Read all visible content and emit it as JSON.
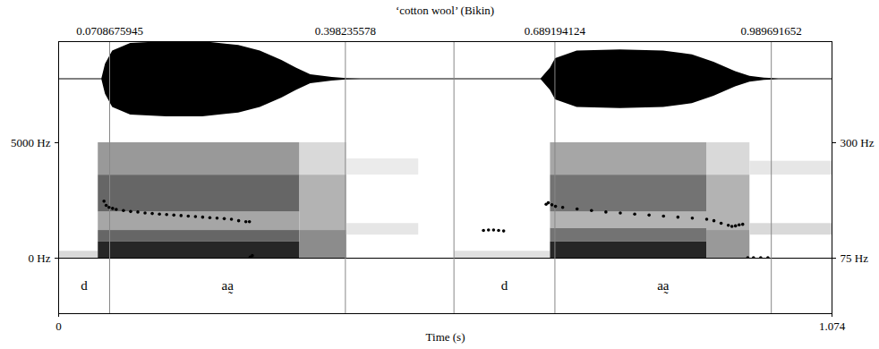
{
  "chart_data": {
    "type": "spectrogram",
    "title": "‘cotton wool’ (Bikin)",
    "xlabel": "Time (s)",
    "xlim": [
      0,
      1.074
    ],
    "xticks": [
      0,
      1.074
    ],
    "top_ticks": [
      0.0708675945,
      0.398235578,
      0.689194124,
      0.989691652
    ],
    "boundaries": [
      0.0708675945,
      0.398235578,
      0.549,
      0.689194124,
      0.989691652
    ],
    "intervals": [
      {
        "start": 0,
        "end": 0.0708675945,
        "label": "d"
      },
      {
        "start": 0.0708675945,
        "end": 0.398235578,
        "label": "aa̰"
      },
      {
        "start": 0.549,
        "end": 0.689194124,
        "label": "d"
      },
      {
        "start": 0.689194124,
        "end": 0.989691652,
        "label": "aa̰"
      }
    ],
    "ylim": [
      0,
      5000
    ],
    "yticks": [
      {
        "value": 0,
        "label": "0 Hz"
      },
      {
        "value": 5000,
        "label": "5000 Hz"
      }
    ],
    "y2lim": [
      75,
      300
    ],
    "y2ticks": [
      {
        "value": 75,
        "label": "75 Hz"
      },
      {
        "value": 300,
        "label": "300 Hz"
      }
    ],
    "waveform": {
      "lim": [
        -1,
        1
      ],
      "t": [
        0,
        0.06,
        0.065,
        0.075,
        0.1,
        0.15,
        0.2,
        0.25,
        0.28,
        0.31,
        0.33,
        0.35,
        0.38,
        0.4,
        0.42,
        0.55,
        0.67,
        0.683,
        0.69,
        0.72,
        0.78,
        0.84,
        0.88,
        0.91,
        0.94,
        0.96,
        0.98,
        1.0,
        1.074
      ],
      "amplitude": [
        0.01,
        0.01,
        0.4,
        0.75,
        0.95,
        1.0,
        1.0,
        0.9,
        0.75,
        0.5,
        0.3,
        0.12,
        0.05,
        0.02,
        0.01,
        0.01,
        0.01,
        0.3,
        0.55,
        0.75,
        0.78,
        0.75,
        0.65,
        0.45,
        0.2,
        0.08,
        0.03,
        0.01,
        0.01
      ]
    },
    "spectrogram": {
      "level_lim": [
        0,
        1
      ],
      "cells": [
        {
          "t0": 0.0,
          "t1": 0.055,
          "f0": 0,
          "f1": 300,
          "level": 0.15
        },
        {
          "t0": 0.055,
          "t1": 0.335,
          "f0": 0,
          "f1": 700,
          "level": 0.85
        },
        {
          "t0": 0.055,
          "t1": 0.335,
          "f0": 700,
          "f1": 1200,
          "level": 0.6
        },
        {
          "t0": 0.055,
          "t1": 0.335,
          "f0": 1200,
          "f1": 2000,
          "level": 0.35
        },
        {
          "t0": 0.055,
          "t1": 0.335,
          "f0": 2000,
          "f1": 3600,
          "level": 0.6
        },
        {
          "t0": 0.055,
          "t1": 0.335,
          "f0": 3600,
          "f1": 5000,
          "level": 0.4
        },
        {
          "t0": 0.335,
          "t1": 0.4,
          "f0": 0,
          "f1": 1200,
          "level": 0.45
        },
        {
          "t0": 0.335,
          "t1": 0.4,
          "f0": 1200,
          "f1": 3600,
          "level": 0.3
        },
        {
          "t0": 0.335,
          "t1": 0.4,
          "f0": 3600,
          "f1": 5000,
          "level": 0.15
        },
        {
          "t0": 0.4,
          "t1": 0.5,
          "f0": 1000,
          "f1": 1500,
          "level": 0.1
        },
        {
          "t0": 0.4,
          "t1": 0.5,
          "f0": 3600,
          "f1": 4300,
          "level": 0.08
        },
        {
          "t0": 0.55,
          "t1": 0.683,
          "f0": 0,
          "f1": 300,
          "level": 0.12
        },
        {
          "t0": 0.683,
          "t1": 0.9,
          "f0": 0,
          "f1": 700,
          "level": 0.85
        },
        {
          "t0": 0.683,
          "t1": 0.9,
          "f0": 700,
          "f1": 1300,
          "level": 0.55
        },
        {
          "t0": 0.683,
          "t1": 0.9,
          "f0": 1300,
          "f1": 2000,
          "level": 0.3
        },
        {
          "t0": 0.683,
          "t1": 0.9,
          "f0": 2000,
          "f1": 3600,
          "level": 0.55
        },
        {
          "t0": 0.683,
          "t1": 0.9,
          "f0": 3600,
          "f1": 5000,
          "level": 0.35
        },
        {
          "t0": 0.9,
          "t1": 0.96,
          "f0": 0,
          "f1": 1200,
          "level": 0.4
        },
        {
          "t0": 0.9,
          "t1": 0.96,
          "f0": 1200,
          "f1": 3600,
          "level": 0.3
        },
        {
          "t0": 0.9,
          "t1": 0.96,
          "f0": 3600,
          "f1": 5000,
          "level": 0.15
        },
        {
          "t0": 0.96,
          "t1": 1.074,
          "f0": 1000,
          "f1": 1500,
          "level": 0.15
        },
        {
          "t0": 0.96,
          "t1": 1.074,
          "f0": 3600,
          "f1": 4200,
          "level": 0.1
        }
      ]
    },
    "pitch": {
      "axis": "y2",
      "color": "#000000",
      "marker": "circle",
      "t": [
        0.063,
        0.066,
        0.07,
        0.075,
        0.08,
        0.09,
        0.1,
        0.11,
        0.12,
        0.13,
        0.14,
        0.15,
        0.16,
        0.17,
        0.18,
        0.19,
        0.2,
        0.21,
        0.22,
        0.23,
        0.24,
        0.25,
        0.26,
        0.265,
        0.266,
        0.269,
        0.59,
        0.597,
        0.604,
        0.611,
        0.618,
        0.677,
        0.68,
        0.685,
        0.69,
        0.7,
        0.72,
        0.74,
        0.76,
        0.78,
        0.8,
        0.82,
        0.84,
        0.86,
        0.88,
        0.9,
        0.91,
        0.92,
        0.93,
        0.935,
        0.94,
        0.945,
        0.95,
        0.957,
        0.965,
        0.975,
        0.985
      ],
      "values": [
        186,
        178,
        174,
        172,
        170,
        168,
        166,
        165,
        163,
        162,
        161,
        160,
        159,
        158,
        157,
        156,
        155,
        154,
        153,
        152,
        151,
        148,
        146,
        146,
        77,
        80,
        129,
        130,
        130,
        129,
        128,
        180,
        183,
        179,
        176,
        174,
        171,
        168,
        165,
        163,
        161,
        159,
        157,
        155,
        153,
        151,
        148,
        143,
        139,
        137,
        138,
        140,
        141,
        76,
        76,
        76,
        76
      ]
    }
  }
}
